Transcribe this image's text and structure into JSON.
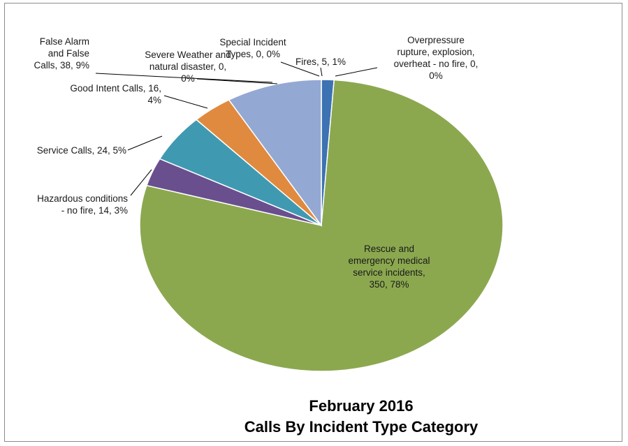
{
  "chart_data": {
    "type": "pie",
    "title": "February 2016",
    "subtitle": "Calls By Incident Type Category",
    "legend": "none",
    "slices": [
      {
        "name": "Fires",
        "value": 5,
        "percent": "1%",
        "color": "#3d72b3",
        "label_lines": [
          "Fires, 5, 1%"
        ]
      },
      {
        "name": "Overpressure rupture, explosion, overheat - no fire",
        "value": 0,
        "percent": "0%",
        "color": "#c0504d",
        "label_lines": [
          "Overpressure",
          "rupture, explosion,",
          "overheat - no fire, 0,",
          "0%"
        ]
      },
      {
        "name": "Rescue and emergency medical service incidents",
        "value": 350,
        "percent": "78%",
        "color": "#8ba84f",
        "label_lines": [
          "Rescue and",
          "emergency medical",
          "service incidents,",
          "350, 78%"
        ]
      },
      {
        "name": "Hazardous conditions - no fire",
        "value": 14,
        "percent": "3%",
        "color": "#6a4f8e",
        "label_lines": [
          "Hazardous conditions",
          "- no fire, 14, 3%"
        ]
      },
      {
        "name": "Service Calls",
        "value": 24,
        "percent": "5%",
        "color": "#3f9ab1",
        "label_lines": [
          "Service Calls, 24, 5%"
        ]
      },
      {
        "name": "Good Intent Calls",
        "value": 16,
        "percent": "4%",
        "color": "#e08a3f",
        "label_lines": [
          "Good Intent Calls, 16,",
          "4%"
        ]
      },
      {
        "name": "False Alarm and False Calls",
        "value": 38,
        "percent": "9%",
        "color": "#93a9d4",
        "label_lines": [
          "False Alarm",
          "and False",
          "Calls, 38, 9%"
        ]
      },
      {
        "name": "Severe Weather and natural disaster",
        "value": 0,
        "percent": "0%",
        "color": "#b4c8e6",
        "label_lines": [
          "Severe Weather and",
          "natural disaster, 0,",
          "0%"
        ]
      },
      {
        "name": "Special Incident Types",
        "value": 0,
        "percent": "0%",
        "color": "#d9c27a",
        "label_lines": [
          "Special Incident",
          "Types, 0, 0%"
        ]
      }
    ]
  }
}
